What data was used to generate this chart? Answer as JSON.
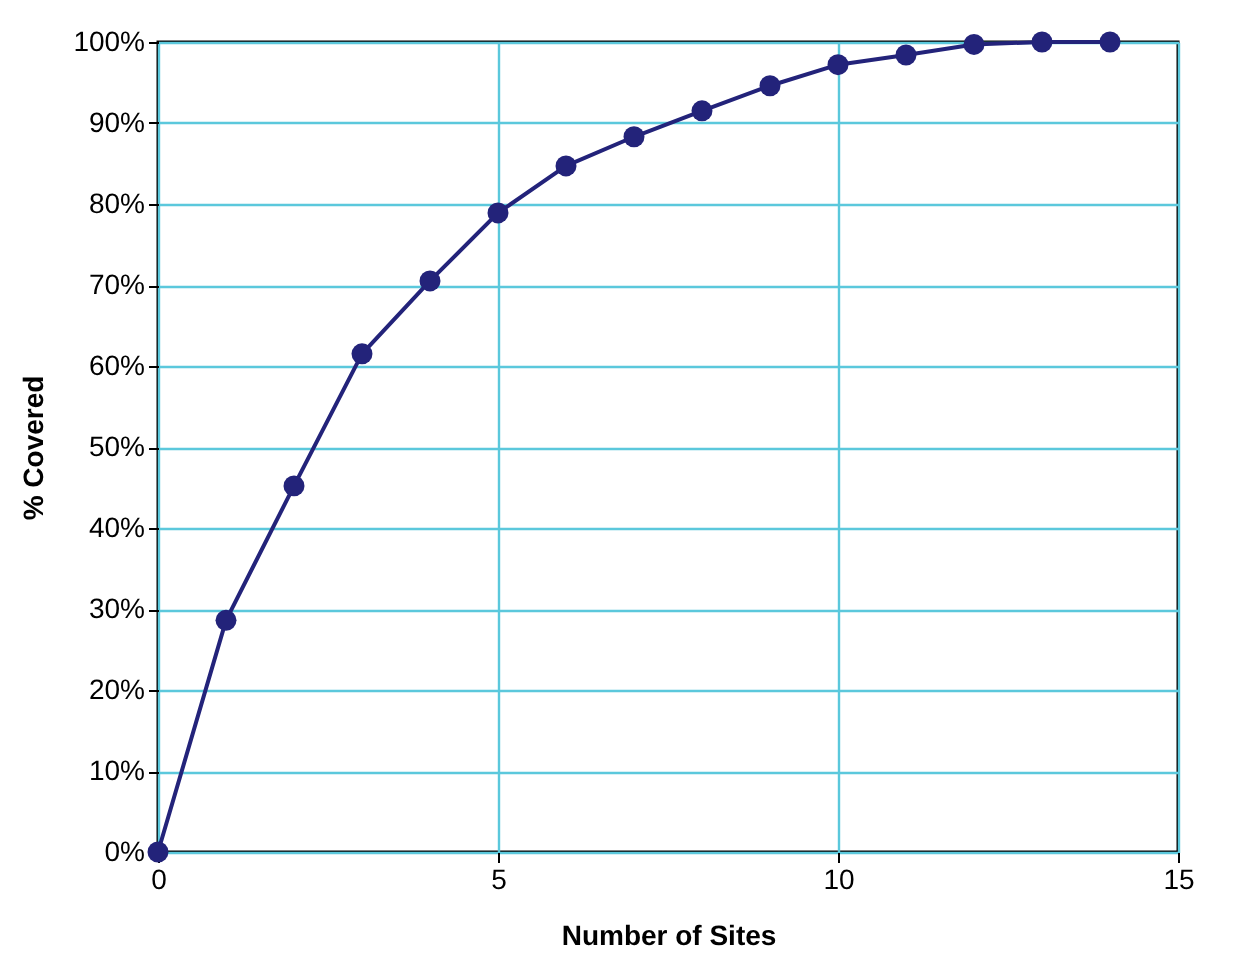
{
  "chart_data": {
    "type": "line",
    "xlabel": "Number of Sites",
    "ylabel": "% Covered",
    "x": [
      0,
      1,
      2,
      3,
      4,
      5,
      6,
      7,
      8,
      9,
      10,
      11,
      12,
      13,
      14
    ],
    "series": [
      {
        "color": "#23237a",
        "values": [
          0,
          28.6,
          45.2,
          61.5,
          70.5,
          78.9,
          84.7,
          88.3,
          91.5,
          94.6,
          97.2,
          98.4,
          99.7,
          100,
          100
        ]
      }
    ],
    "xlim": [
      0,
      15
    ],
    "xticks": [
      0,
      5,
      10,
      15
    ],
    "ylim": [
      0,
      100
    ],
    "yticks": [
      {
        "value": 0,
        "label": "0%"
      },
      {
        "value": 10,
        "label": "10%"
      },
      {
        "value": 20,
        "label": "20%"
      },
      {
        "value": 30,
        "label": "30%"
      },
      {
        "value": 40,
        "label": "40%"
      },
      {
        "value": 50,
        "label": "50%"
      },
      {
        "value": 60,
        "label": "60%"
      },
      {
        "value": 70,
        "label": "70%"
      },
      {
        "value": 80,
        "label": "80%"
      },
      {
        "value": 90,
        "label": "90%"
      },
      {
        "value": 100,
        "label": "100%"
      }
    ],
    "grid": true,
    "marker": "circle",
    "line_style": "solid"
  }
}
